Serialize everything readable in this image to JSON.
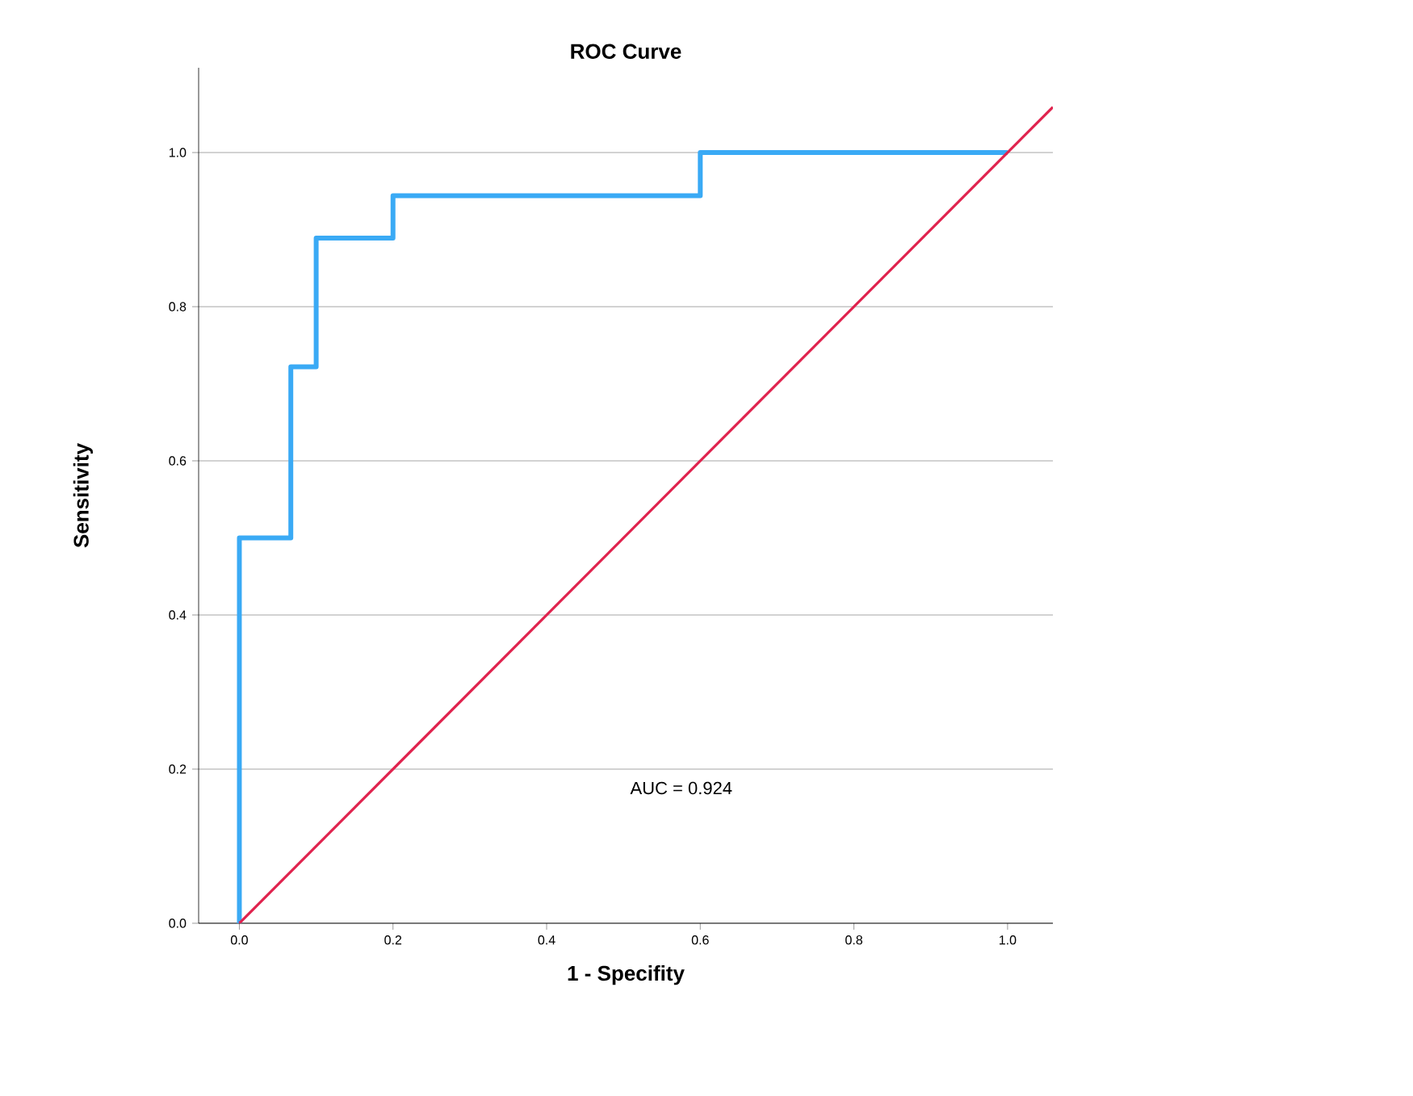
{
  "chart_data": {
    "type": "line",
    "title": "ROC Curve",
    "xlabel": "1 - Specifity",
    "ylabel": "Sensitivity",
    "series": [
      {
        "type": "step",
        "color": "#3aaaf5",
        "x": [
          0,
          0,
          0.067,
          0.067,
          0.1,
          0.1,
          0.2,
          0.2,
          0.6,
          0.6,
          1.0
        ],
        "values": [
          0,
          0.5,
          0.5,
          0.722,
          0.722,
          0.889,
          0.889,
          0.944,
          0.944,
          1.0,
          1.0
        ]
      },
      {
        "color": "#e0234e",
        "x": [
          0,
          1.059
        ],
        "values": [
          0,
          1.059
        ]
      }
    ],
    "xlim": [
      -0.053,
      1.059
    ],
    "ylim": [
      0,
      1.11
    ],
    "xticks": [
      {
        "value": 0,
        "label": "0.0"
      },
      {
        "value": 0.2,
        "label": "0.2"
      },
      {
        "value": 0.4,
        "label": "0.4"
      },
      {
        "value": 0.6,
        "label": "0.6"
      },
      {
        "value": 0.8,
        "label": "0.8"
      },
      {
        "value": 1.0,
        "label": "1.0"
      }
    ],
    "yticks": [
      {
        "value": 0,
        "label": "0.0"
      },
      {
        "value": 0.2,
        "label": "0.2"
      },
      {
        "value": 0.4,
        "label": "0.4"
      },
      {
        "value": 0.6,
        "label": "0.6"
      },
      {
        "value": 0.8,
        "label": "0.8"
      },
      {
        "value": 1.0,
        "label": "1.0"
      }
    ],
    "grid": "y",
    "annotations": [
      "AUC = 0.924"
    ]
  }
}
